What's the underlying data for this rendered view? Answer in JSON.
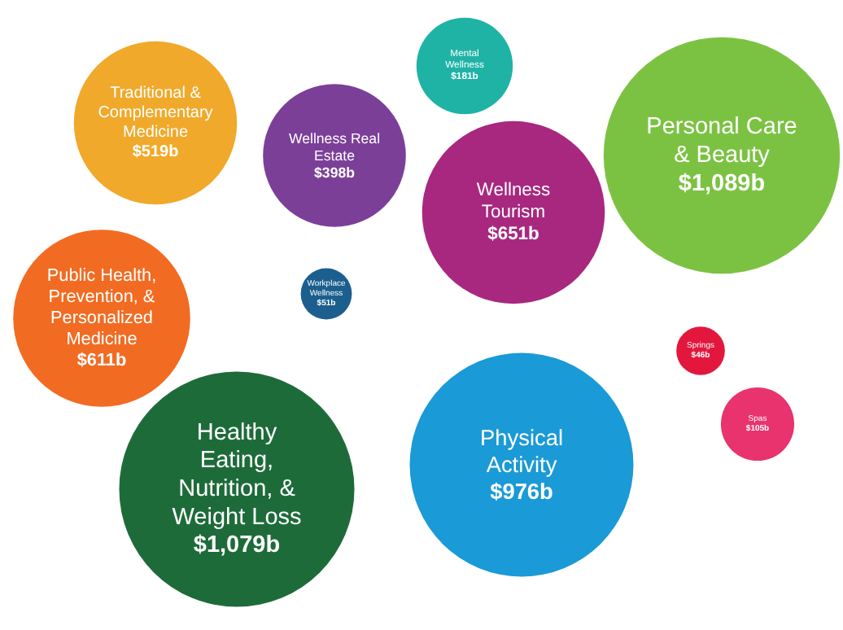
{
  "chart_data": {
    "type": "other",
    "categories": [
      "Traditional & Complementary Medicine",
      "Mental Wellness",
      "Wellness Real Estate",
      "Wellness Tourism",
      "Personal Care & Beauty",
      "Public Health, Prevention, & Personalized Medicine",
      "Workplace Wellness",
      "Healthy Eating, Nutrition, & Weight Loss",
      "Physical Activity",
      "Springs",
      "Spas"
    ],
    "values": [
      519,
      181,
      398,
      651,
      1089,
      611,
      51,
      1079,
      976,
      46,
      105
    ],
    "value_labels": [
      "$519b",
      "$181b",
      "$398b",
      "$651b",
      "$1,089b",
      "$611b",
      "$51b",
      "$1,079b",
      "$976b",
      "$46b",
      "$105b"
    ],
    "colors": [
      "#f0a92a",
      "#1fb3a6",
      "#7b3f98",
      "#a8287f",
      "#7cc242",
      "#f26b22",
      "#1c5f8e",
      "#1e6b3a",
      "#1a9ad6",
      "#e3173e",
      "#e8336e"
    ]
  }
}
